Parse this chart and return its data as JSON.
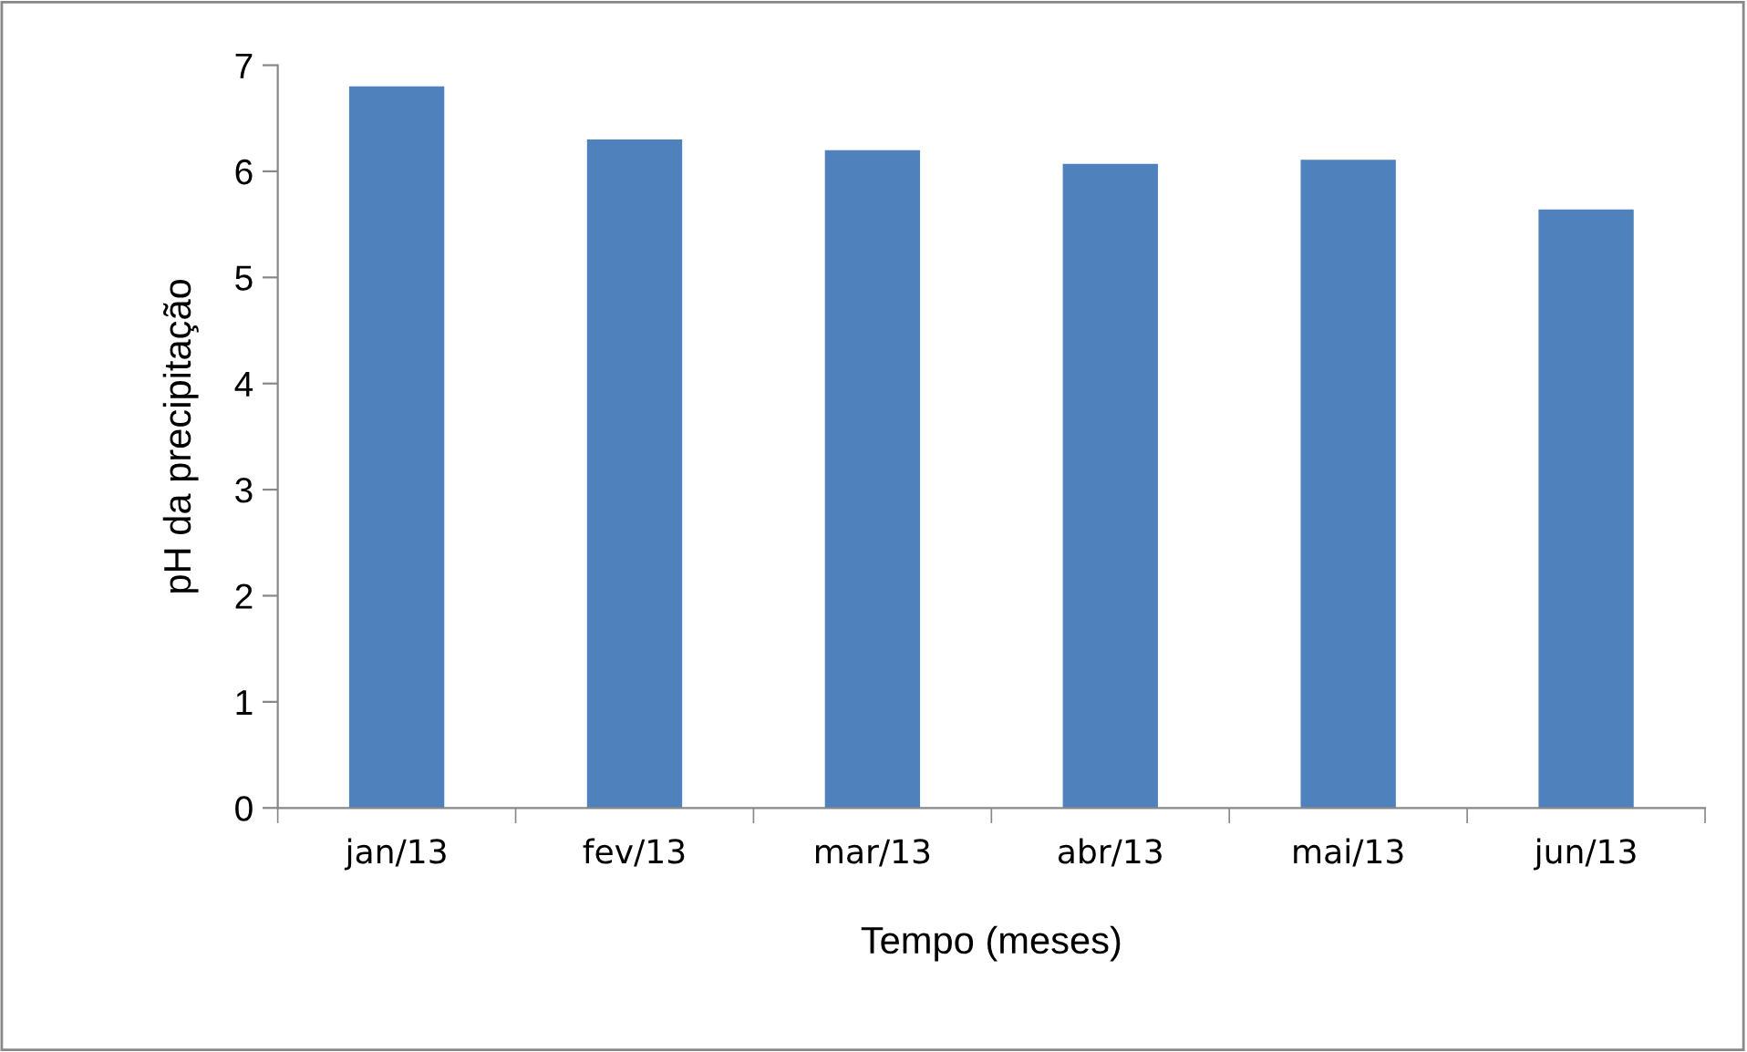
{
  "chart_data": {
    "type": "bar",
    "xlabel": "Tempo (meses)",
    "ylabel": "pH da precipitação",
    "categories": [
      "jan/13",
      "fev/13",
      "mar/13",
      "abr/13",
      "mai/13",
      "jun/13"
    ],
    "values": [
      6.8,
      6.3,
      6.2,
      6.07,
      6.11,
      5.64
    ],
    "color": "#4f81bd",
    "ylim": [
      0,
      7
    ],
    "yticks": [
      0,
      1,
      2,
      3,
      4,
      5,
      6,
      7
    ],
    "grid": false
  }
}
